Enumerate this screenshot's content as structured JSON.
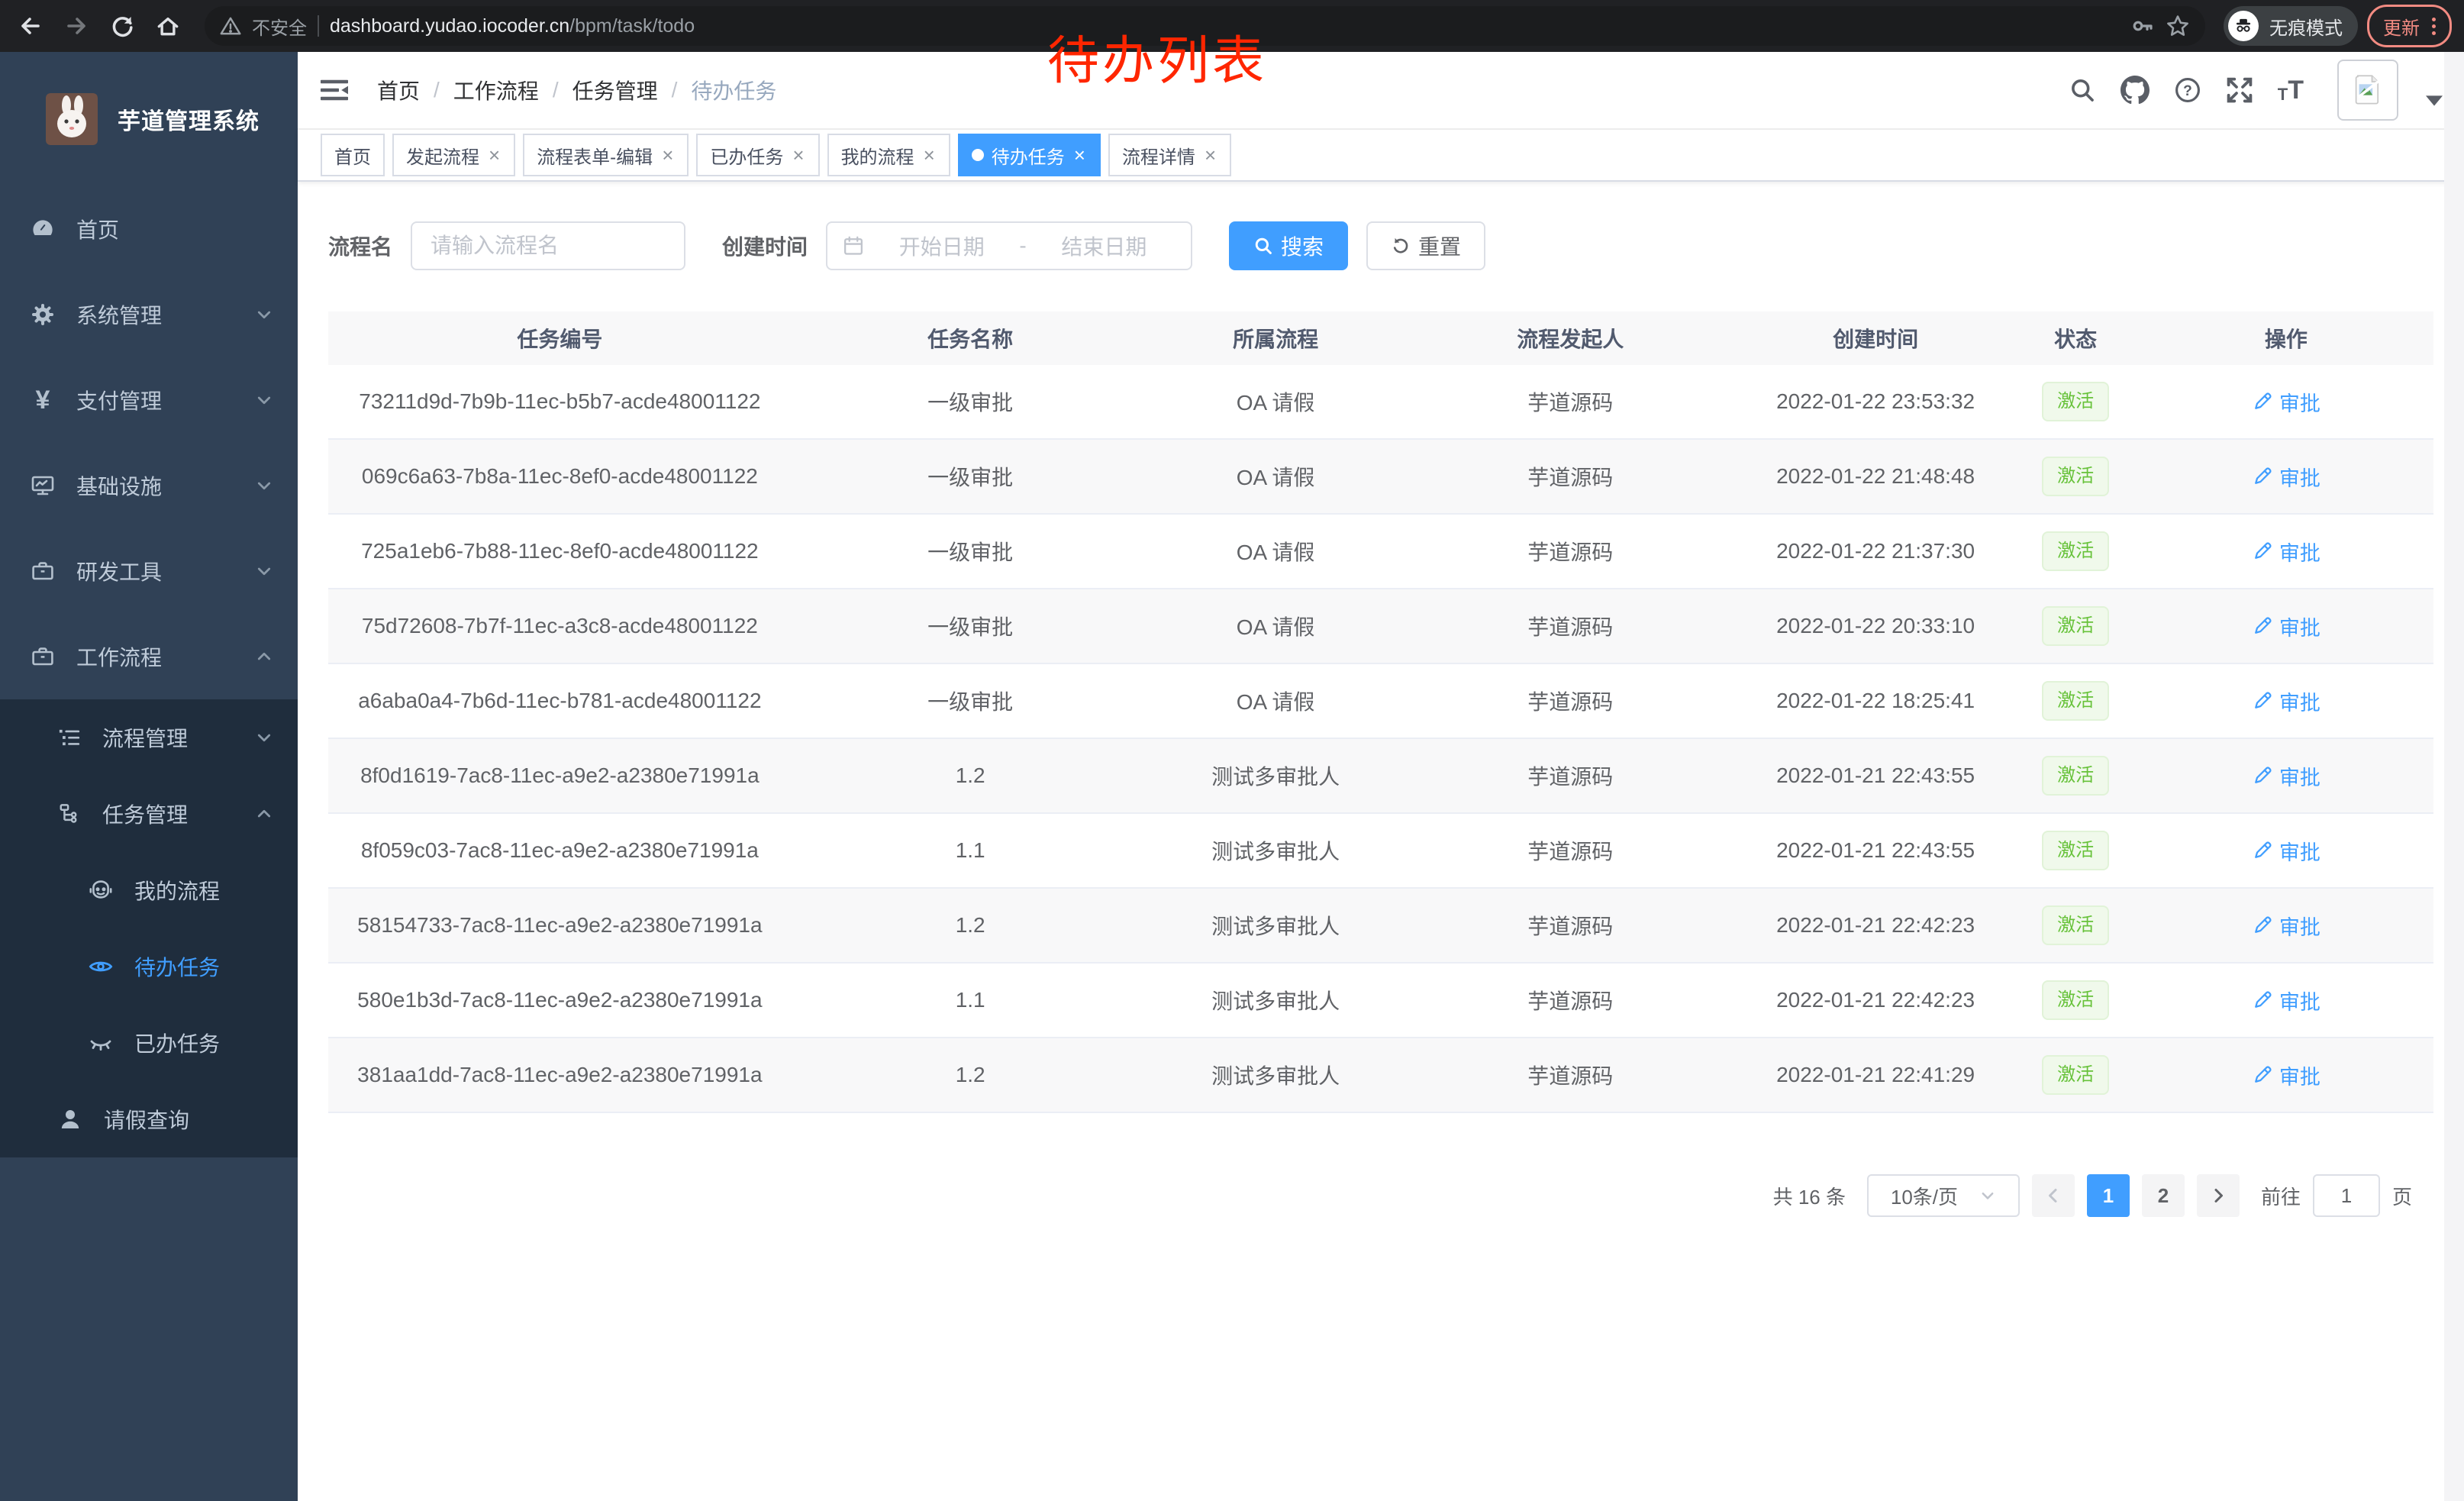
{
  "annotation": {
    "text": "待办列表"
  },
  "chrome": {
    "security_label": "不安全",
    "url_domain": "dashboard.yudao.iocoder.cn",
    "url_path": "/bpm/task/todo",
    "incognito_label": "无痕模式",
    "update_label": "更新"
  },
  "sidebar": {
    "title": "芋道管理系统",
    "menu": {
      "home": "首页",
      "system": "系统管理",
      "pay": "支付管理",
      "infra": "基础设施",
      "dev": "研发工具",
      "workflow": "工作流程",
      "process_mgmt": "流程管理",
      "task_mgmt": "任务管理",
      "my_process": "我的流程",
      "todo": "待办任务",
      "done": "已办任务",
      "leave": "请假查询"
    }
  },
  "breadcrumb": [
    "首页",
    "工作流程",
    "任务管理",
    "待办任务"
  ],
  "tags": [
    {
      "label": "首页",
      "closable": false,
      "active": false
    },
    {
      "label": "发起流程",
      "closable": true,
      "active": false
    },
    {
      "label": "流程表单-编辑",
      "closable": true,
      "active": false
    },
    {
      "label": "已办任务",
      "closable": true,
      "active": false
    },
    {
      "label": "我的流程",
      "closable": true,
      "active": false
    },
    {
      "label": "待办任务",
      "closable": true,
      "active": true
    },
    {
      "label": "流程详情",
      "closable": true,
      "active": false
    }
  ],
  "search": {
    "name_label": "流程名",
    "name_placeholder": "请输入流程名",
    "time_label": "创建时间",
    "start_placeholder": "开始日期",
    "separator": "-",
    "end_placeholder": "结束日期",
    "search_label": "搜索",
    "reset_label": "重置"
  },
  "table": {
    "headers": [
      "任务编号",
      "任务名称",
      "所属流程",
      "流程发起人",
      "创建时间",
      "状态",
      "操作"
    ],
    "rows": [
      {
        "id": "73211d9d-7b9b-11ec-b5b7-acde48001122",
        "name": "一级审批",
        "process": "OA 请假",
        "starter": "芋道源码",
        "time": "2022-01-22 23:53:32",
        "status": "激活",
        "action": "审批"
      },
      {
        "id": "069c6a63-7b8a-11ec-8ef0-acde48001122",
        "name": "一级审批",
        "process": "OA 请假",
        "starter": "芋道源码",
        "time": "2022-01-22 21:48:48",
        "status": "激活",
        "action": "审批"
      },
      {
        "id": "725a1eb6-7b88-11ec-8ef0-acde48001122",
        "name": "一级审批",
        "process": "OA 请假",
        "starter": "芋道源码",
        "time": "2022-01-22 21:37:30",
        "status": "激活",
        "action": "审批"
      },
      {
        "id": "75d72608-7b7f-11ec-a3c8-acde48001122",
        "name": "一级审批",
        "process": "OA 请假",
        "starter": "芋道源码",
        "time": "2022-01-22 20:33:10",
        "status": "激活",
        "action": "审批"
      },
      {
        "id": "a6aba0a4-7b6d-11ec-b781-acde48001122",
        "name": "一级审批",
        "process": "OA 请假",
        "starter": "芋道源码",
        "time": "2022-01-22 18:25:41",
        "status": "激活",
        "action": "审批"
      },
      {
        "id": "8f0d1619-7ac8-11ec-a9e2-a2380e71991a",
        "name": "1.2",
        "process": "测试多审批人",
        "starter": "芋道源码",
        "time": "2022-01-21 22:43:55",
        "status": "激活",
        "action": "审批"
      },
      {
        "id": "8f059c03-7ac8-11ec-a9e2-a2380e71991a",
        "name": "1.1",
        "process": "测试多审批人",
        "starter": "芋道源码",
        "time": "2022-01-21 22:43:55",
        "status": "激活",
        "action": "审批"
      },
      {
        "id": "58154733-7ac8-11ec-a9e2-a2380e71991a",
        "name": "1.2",
        "process": "测试多审批人",
        "starter": "芋道源码",
        "time": "2022-01-21 22:42:23",
        "status": "激活",
        "action": "审批"
      },
      {
        "id": "580e1b3d-7ac8-11ec-a9e2-a2380e71991a",
        "name": "1.1",
        "process": "测试多审批人",
        "starter": "芋道源码",
        "time": "2022-01-21 22:42:23",
        "status": "激活",
        "action": "审批"
      },
      {
        "id": "381aa1dd-7ac8-11ec-a9e2-a2380e71991a",
        "name": "1.2",
        "process": "测试多审批人",
        "starter": "芋道源码",
        "time": "2022-01-21 22:41:29",
        "status": "激活",
        "action": "审批"
      }
    ]
  },
  "pagination": {
    "total": "共 16 条",
    "page_size": "10条/页",
    "pages": [
      "1",
      "2"
    ],
    "current": "1",
    "jump_prefix": "前往",
    "jump_value": "1",
    "jump_suffix": "页"
  },
  "colors": {
    "accent": "#409eff",
    "success": "#67c23a",
    "sidebar_bg": "#304156",
    "submenu_bg": "#1f2d3d",
    "annotation": "#ff2600"
  }
}
